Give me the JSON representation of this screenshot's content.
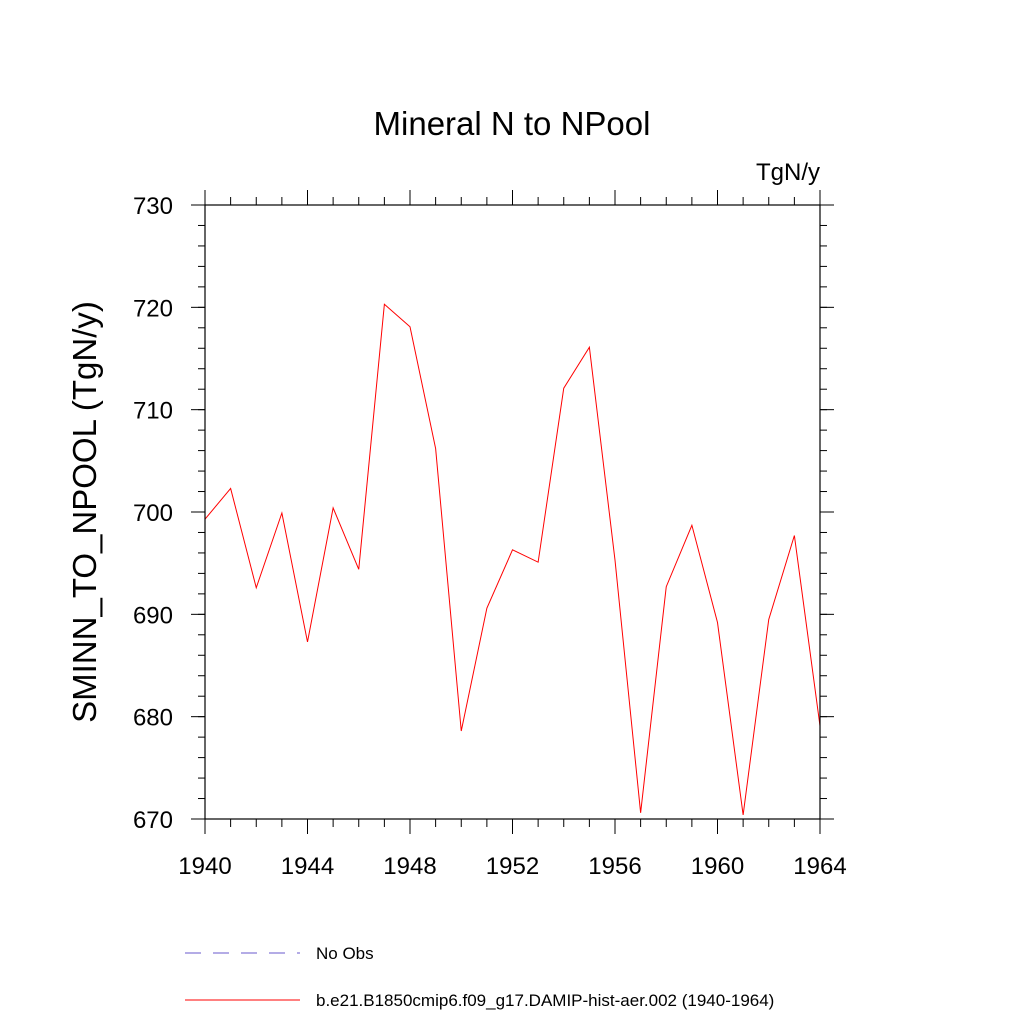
{
  "chart_data": {
    "type": "line",
    "title": "Mineral N to NPool",
    "units_label": "TgN/y",
    "ylabel": "SMINN_TO_NPOOL  (TgN/y)",
    "xlabel": "",
    "xlim": [
      1940,
      1964
    ],
    "ylim": [
      670,
      730
    ],
    "x_ticks": [
      1940,
      1944,
      1948,
      1952,
      1956,
      1960,
      1964
    ],
    "y_ticks": [
      670,
      680,
      690,
      700,
      710,
      720,
      730
    ],
    "grid": false,
    "series": [
      {
        "name": "b.e21.B1850cmip6.f09_g17.DAMIP-hist-aer.002 (1940-1964)",
        "color": "#ff0000",
        "style": "solid",
        "x": [
          1940,
          1941,
          1942,
          1943,
          1944,
          1945,
          1946,
          1947,
          1948,
          1949,
          1950,
          1951,
          1952,
          1953,
          1954,
          1955,
          1956,
          1957,
          1958,
          1959,
          1960,
          1961,
          1962,
          1963,
          1964
        ],
        "y": [
          699.3,
          702.3,
          692.6,
          699.9,
          687.3,
          700.4,
          694.4,
          720.3,
          718.1,
          706.2,
          678.6,
          690.6,
          696.3,
          695.1,
          712.1,
          716.1,
          695.3,
          670.6,
          692.7,
          698.7,
          689.2,
          670.4,
          689.5,
          697.7,
          679.1
        ]
      }
    ],
    "legend": [
      {
        "label": "No Obs",
        "color": "#6a5acd",
        "style": "dashed"
      },
      {
        "label": "b.e21.B1850cmip6.f09_g17.DAMIP-hist-aer.002 (1940-1964)",
        "color": "#ff0000",
        "style": "solid"
      }
    ]
  }
}
